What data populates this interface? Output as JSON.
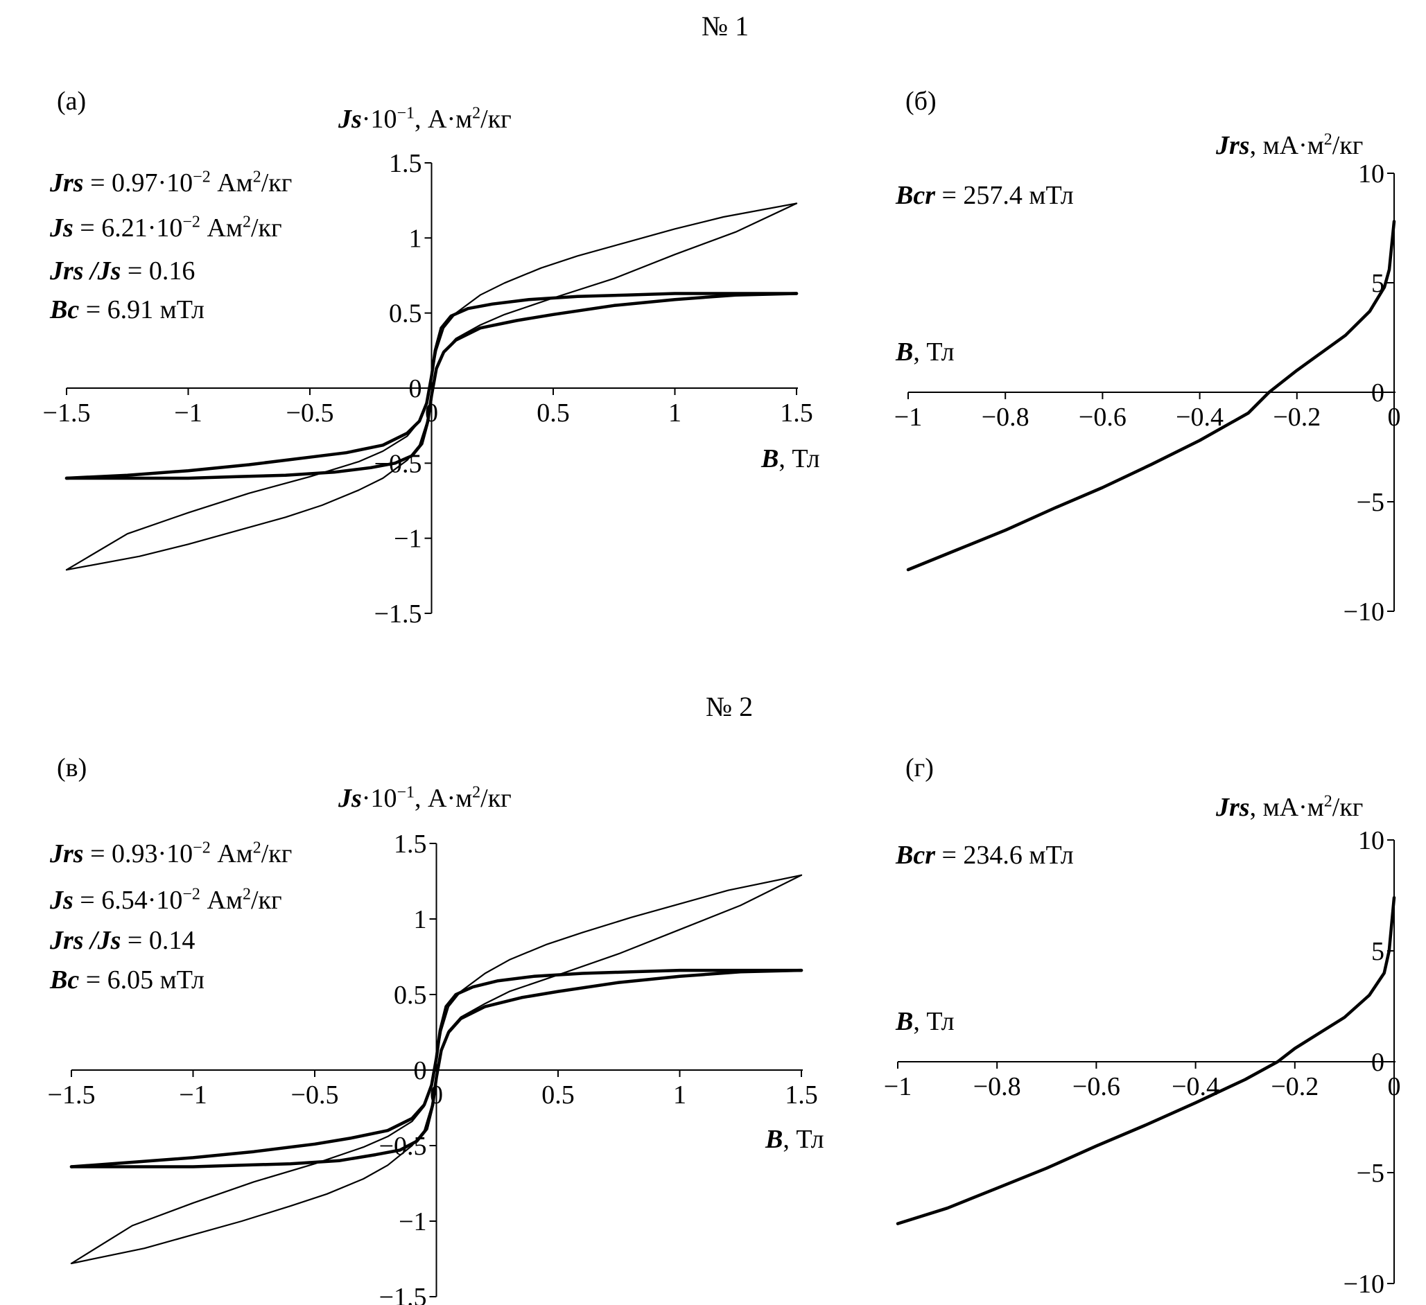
{
  "sections": [
    {
      "title": "№ 1"
    },
    {
      "title": "№ 2"
    }
  ],
  "chart_data": [
    {
      "type": "line",
      "panel": "(а)",
      "ylabel_prefix": "Js",
      "ylabel_rest": "·10",
      "ylabel_exp": "−1",
      "ylabel_units": ", А·м",
      "ylabel_units_exp": "2",
      "ylabel_units_tail": "/кг",
      "xlabel_b": "B",
      "xlabel_rest": ", Тл",
      "xlim": [
        -1.5,
        1.5
      ],
      "ylim": [
        -1.5,
        1.5
      ],
      "xticks": [
        -1.5,
        -1,
        -0.5,
        0,
        0.5,
        1,
        1.5
      ],
      "xtick_labels": [
        "−1.5",
        "−1",
        "−0.5",
        "0",
        "0.5",
        "1",
        "1.5"
      ],
      "yticks": [
        -1.5,
        -1,
        -0.5,
        0,
        0.5,
        1,
        1.5
      ],
      "ytick_labels": [
        "−1.5",
        "−1",
        "−0.5",
        "0",
        "0.5",
        "1",
        "1.5"
      ],
      "annotations": [
        {
          "b": "Jrs",
          "text": " = 0.97·10",
          "exp": "−2",
          "tail": " Ам",
          "exp2": "2",
          "tail2": "/кг"
        },
        {
          "b": "Js",
          "text": " = 6.21·10",
          "exp": "−2",
          "tail": " Ам",
          "exp2": "2",
          "tail2": "/кг"
        },
        {
          "b": "Jrs /Js",
          "text": " = 0.16",
          "exp": "",
          "tail": "",
          "exp2": "",
          "tail2": ""
        },
        {
          "b": "Bc",
          "text": " = 6.91 мТл",
          "exp": "",
          "tail": "",
          "exp2": "",
          "tail2": ""
        }
      ],
      "series": [
        {
          "name": "thin-upper",
          "x": [
            1.5,
            1.2,
            1.0,
            0.8,
            0.6,
            0.45,
            0.3,
            0.2,
            0.1,
            0.05,
            0.02,
            0.0,
            -0.02,
            -0.05,
            -0.1,
            -0.2,
            -0.3,
            -0.5,
            -0.75,
            -1.0,
            -1.25,
            -1.5
          ],
          "y": [
            1.23,
            1.14,
            1.06,
            0.97,
            0.88,
            0.8,
            0.7,
            0.62,
            0.5,
            0.4,
            0.25,
            0.08,
            -0.1,
            -0.22,
            -0.32,
            -0.42,
            -0.49,
            -0.59,
            -0.7,
            -0.83,
            -0.97,
            -1.21
          ]
        },
        {
          "name": "thin-lower",
          "x": [
            -1.5,
            -1.2,
            -1.0,
            -0.8,
            -0.6,
            -0.45,
            -0.3,
            -0.2,
            -0.1,
            -0.05,
            -0.02,
            0.0,
            0.02,
            0.05,
            0.1,
            0.2,
            0.3,
            0.5,
            0.75,
            1.0,
            1.25,
            1.5
          ],
          "y": [
            -1.21,
            -1.12,
            -1.04,
            -0.95,
            -0.86,
            -0.78,
            -0.68,
            -0.6,
            -0.48,
            -0.38,
            -0.23,
            -0.06,
            0.12,
            0.24,
            0.33,
            0.42,
            0.49,
            0.6,
            0.73,
            0.89,
            1.04,
            1.23
          ]
        },
        {
          "name": "thick-upper",
          "x": [
            1.5,
            1.2,
            1.0,
            0.8,
            0.6,
            0.4,
            0.25,
            0.15,
            0.08,
            0.04,
            0.015,
            0.0,
            -0.02,
            -0.05,
            -0.1,
            -0.2,
            -0.35,
            -0.5,
            -0.75,
            -1.0,
            -1.25,
            -1.5
          ],
          "y": [
            0.63,
            0.63,
            0.63,
            0.62,
            0.61,
            0.59,
            0.56,
            0.53,
            0.48,
            0.4,
            0.25,
            0.08,
            -0.1,
            -0.22,
            -0.3,
            -0.38,
            -0.43,
            -0.46,
            -0.51,
            -0.55,
            -0.58,
            -0.6
          ]
        },
        {
          "name": "thick-lower",
          "x": [
            -1.5,
            -1.2,
            -1.0,
            -0.8,
            -0.6,
            -0.4,
            -0.25,
            -0.15,
            -0.08,
            -0.04,
            -0.015,
            0.0,
            0.02,
            0.05,
            0.1,
            0.2,
            0.35,
            0.5,
            0.75,
            1.0,
            1.25,
            1.5
          ],
          "y": [
            -0.6,
            -0.6,
            -0.6,
            -0.59,
            -0.58,
            -0.56,
            -0.53,
            -0.5,
            -0.45,
            -0.37,
            -0.22,
            -0.05,
            0.13,
            0.24,
            0.32,
            0.4,
            0.45,
            0.49,
            0.55,
            0.59,
            0.62,
            0.63
          ]
        }
      ]
    },
    {
      "type": "line",
      "panel": "(б)",
      "ylabel_prefix": "Jrs",
      "ylabel_rest": ", мА·м",
      "ylabel_exp": "2",
      "ylabel_units": "/кг",
      "ylabel_units_exp": "",
      "ylabel_units_tail": "",
      "xlabel_b": "B",
      "xlabel_rest": ", Тл",
      "xlim": [
        -1,
        0
      ],
      "ylim": [
        -10,
        10
      ],
      "xticks": [
        -1,
        -0.8,
        -0.6,
        -0.4,
        -0.2,
        0
      ],
      "xtick_labels": [
        "−1",
        "−0.8",
        "−0.6",
        "−0.4",
        "−0.2",
        "0"
      ],
      "yticks": [
        -10,
        -5,
        0,
        5,
        10
      ],
      "ytick_labels": [
        "−10",
        "−5",
        "0",
        "5",
        "10"
      ],
      "annotations": [
        {
          "b": "Bcr",
          "text": " = 257.4 мТл",
          "exp": "",
          "tail": "",
          "exp2": "",
          "tail2": ""
        }
      ],
      "series": [
        {
          "name": "Jrs",
          "x": [
            -1.0,
            -0.9,
            -0.8,
            -0.7,
            -0.6,
            -0.5,
            -0.4,
            -0.3,
            -0.2574,
            -0.2,
            -0.1,
            -0.05,
            -0.02,
            -0.01,
            0.0
          ],
          "y": [
            -8.1,
            -7.2,
            -6.3,
            -5.3,
            -4.35,
            -3.3,
            -2.2,
            -0.95,
            0.0,
            1.0,
            2.6,
            3.7,
            4.8,
            5.6,
            7.8
          ]
        }
      ]
    },
    {
      "type": "line",
      "panel": "(в)",
      "ylabel_prefix": "Js",
      "ylabel_rest": "·10",
      "ylabel_exp": "−1",
      "ylabel_units": ", А·м",
      "ylabel_units_exp": "2",
      "ylabel_units_tail": "/кг",
      "xlabel_b": "B",
      "xlabel_rest": ", Тл",
      "xlim": [
        -1.5,
        1.5
      ],
      "ylim": [
        -1.5,
        1.5
      ],
      "xticks": [
        -1.5,
        -1,
        -0.5,
        0,
        0.5,
        1,
        1.5
      ],
      "xtick_labels": [
        "−1.5",
        "−1",
        "−0.5",
        "0",
        "0.5",
        "1",
        "1.5"
      ],
      "yticks": [
        -1.5,
        -1,
        -0.5,
        0,
        0.5,
        1,
        1.5
      ],
      "ytick_labels": [
        "−1.5",
        "−1",
        "−0.5",
        "0",
        "0.5",
        "1",
        "1.5"
      ],
      "annotations": [
        {
          "b": "Jrs",
          "text": " = 0.93·10",
          "exp": "−2",
          "tail": " Ам",
          "exp2": "2",
          "tail2": "/кг"
        },
        {
          "b": "Js",
          "text": " = 6.54·10",
          "exp": "−2",
          "tail": " Ам",
          "exp2": "2",
          "tail2": "/кг"
        },
        {
          "b": "Jrs /Js",
          "text": " = 0.14",
          "exp": "",
          "tail": "",
          "exp2": "",
          "tail2": ""
        },
        {
          "b": "Bc",
          "text": " = 6.05 мТл",
          "exp": "",
          "tail": "",
          "exp2": "",
          "tail2": ""
        }
      ],
      "series": [
        {
          "name": "thin-upper",
          "x": [
            1.5,
            1.2,
            1.0,
            0.8,
            0.6,
            0.45,
            0.3,
            0.2,
            0.1,
            0.05,
            0.02,
            0.0,
            -0.02,
            -0.05,
            -0.1,
            -0.2,
            -0.3,
            -0.5,
            -0.75,
            -1.0,
            -1.25,
            -1.5
          ],
          "y": [
            1.29,
            1.19,
            1.1,
            1.01,
            0.91,
            0.83,
            0.73,
            0.64,
            0.52,
            0.42,
            0.26,
            0.08,
            -0.1,
            -0.24,
            -0.34,
            -0.44,
            -0.51,
            -0.62,
            -0.74,
            -0.88,
            -1.03,
            -1.28
          ]
        },
        {
          "name": "thin-lower",
          "x": [
            -1.5,
            -1.2,
            -1.0,
            -0.8,
            -0.6,
            -0.45,
            -0.3,
            -0.2,
            -0.1,
            -0.05,
            -0.02,
            0.0,
            0.02,
            0.05,
            0.1,
            0.2,
            0.3,
            0.5,
            0.75,
            1.0,
            1.25,
            1.5
          ],
          "y": [
            -1.28,
            -1.18,
            -1.09,
            -1.0,
            -0.9,
            -0.82,
            -0.72,
            -0.63,
            -0.5,
            -0.4,
            -0.24,
            -0.06,
            0.12,
            0.26,
            0.35,
            0.44,
            0.52,
            0.63,
            0.77,
            0.93,
            1.09,
            1.29
          ]
        },
        {
          "name": "thick-upper",
          "x": [
            1.5,
            1.2,
            1.0,
            0.8,
            0.6,
            0.4,
            0.25,
            0.15,
            0.08,
            0.04,
            0.015,
            0.0,
            -0.02,
            -0.05,
            -0.1,
            -0.2,
            -0.35,
            -0.5,
            -0.75,
            -1.0,
            -1.25,
            -1.5
          ],
          "y": [
            0.66,
            0.66,
            0.66,
            0.65,
            0.64,
            0.62,
            0.59,
            0.55,
            0.5,
            0.42,
            0.26,
            0.08,
            -0.1,
            -0.23,
            -0.32,
            -0.4,
            -0.45,
            -0.49,
            -0.54,
            -0.58,
            -0.61,
            -0.64
          ]
        },
        {
          "name": "thick-lower",
          "x": [
            -1.5,
            -1.2,
            -1.0,
            -0.8,
            -0.6,
            -0.4,
            -0.25,
            -0.15,
            -0.08,
            -0.04,
            -0.015,
            0.0,
            0.02,
            0.05,
            0.1,
            0.2,
            0.35,
            0.5,
            0.75,
            1.0,
            1.25,
            1.5
          ],
          "y": [
            -0.64,
            -0.64,
            -0.64,
            -0.63,
            -0.62,
            -0.6,
            -0.56,
            -0.53,
            -0.47,
            -0.39,
            -0.23,
            -0.05,
            0.13,
            0.25,
            0.34,
            0.42,
            0.48,
            0.52,
            0.58,
            0.62,
            0.65,
            0.66
          ]
        }
      ]
    },
    {
      "type": "line",
      "panel": "(г)",
      "ylabel_prefix": "Jrs",
      "ylabel_rest": ", мА·м",
      "ylabel_exp": "2",
      "ylabel_units": "/кг",
      "ylabel_units_exp": "",
      "ylabel_units_tail": "",
      "xlabel_b": "B",
      "xlabel_rest": ", Тл",
      "xlim": [
        -1,
        0
      ],
      "ylim": [
        -10,
        10
      ],
      "xticks": [
        -1,
        -0.8,
        -0.6,
        -0.4,
        -0.2,
        0
      ],
      "xtick_labels": [
        "−1",
        "−0.8",
        "−0.6",
        "−0.4",
        "−0.2",
        "0"
      ],
      "yticks": [
        -10,
        -5,
        0,
        5,
        10
      ],
      "ytick_labels": [
        "−10",
        "−5",
        "0",
        "5",
        "10"
      ],
      "annotations": [
        {
          "b": "Bcr",
          "text": " = 234.6 мТл",
          "exp": "",
          "tail": "",
          "exp2": "",
          "tail2": ""
        }
      ],
      "series": [
        {
          "name": "Jrs",
          "x": [
            -1.0,
            -0.9,
            -0.8,
            -0.7,
            -0.6,
            -0.5,
            -0.4,
            -0.3,
            -0.2346,
            -0.2,
            -0.1,
            -0.05,
            -0.02,
            -0.01,
            0.0
          ],
          "y": [
            -7.3,
            -6.6,
            -5.7,
            -4.8,
            -3.8,
            -2.85,
            -1.85,
            -0.8,
            0.0,
            0.6,
            2.0,
            3.0,
            4.0,
            5.0,
            7.4
          ]
        }
      ]
    }
  ]
}
